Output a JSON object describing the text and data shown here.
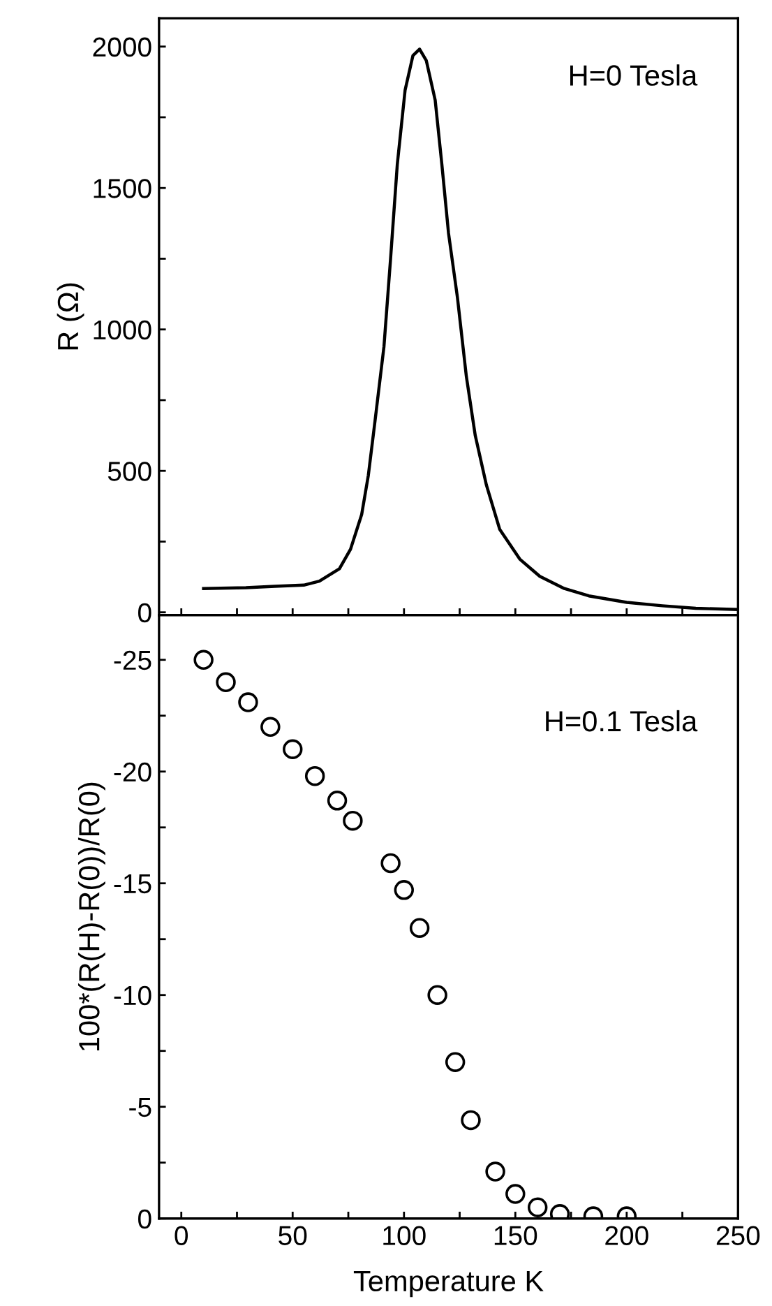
{
  "chart_data": [
    {
      "type": "line",
      "ylabel": "R (Ω)",
      "annotations": [
        "H=0 Tesla"
      ],
      "tick_labels": "y",
      "grid": false,
      "marker": "none",
      "line_style": "solid",
      "xlim": [
        -10,
        250
      ],
      "xticks": [
        {
          "value": 0,
          "label": null
        },
        {
          "value": 25,
          "label": null
        },
        {
          "value": 50,
          "label": null
        },
        {
          "value": 75,
          "label": null
        },
        {
          "value": 100,
          "label": null
        },
        {
          "value": 125,
          "label": null
        },
        {
          "value": 150,
          "label": null
        },
        {
          "value": 175,
          "label": null
        },
        {
          "value": 200,
          "label": null
        },
        {
          "value": 225,
          "label": null
        },
        {
          "value": 250,
          "label": null
        }
      ],
      "ylim": [
        -10,
        2100
      ],
      "yticks": [
        0,
        {
          "value": 250,
          "label": null
        },
        500,
        {
          "value": 750,
          "label": null
        },
        1000,
        {
          "value": 1250,
          "label": null
        },
        1500,
        {
          "value": 1750,
          "label": null
        },
        2000
      ],
      "series": [
        {
          "color": "#000000",
          "x": [
            10,
            29,
            42,
            55,
            62,
            71,
            76,
            81,
            84,
            87,
            91,
            94,
            97,
            100.5,
            104,
            107,
            110,
            114,
            117,
            120,
            124,
            128,
            132,
            137,
            143,
            152,
            161,
            172,
            183,
            200,
            216,
            231,
            250
          ],
          "values": [
            84,
            87,
            92,
            96,
            110,
            154,
            223,
            346,
            485,
            677,
            939,
            1253,
            1584,
            1846,
            1968,
            1991,
            1951,
            1811,
            1584,
            1340,
            1113,
            834,
            625,
            450,
            293,
            188,
            127,
            84,
            58,
            35,
            23,
            14,
            10
          ]
        }
      ]
    },
    {
      "type": "scatter",
      "xlabel": "Temperature K",
      "ylabel": "100*(R(H)-R(0))/R(0)",
      "annotations": [
        "H=0.1 Tesla"
      ],
      "grid": false,
      "marker": "circle",
      "xlim": [
        -10,
        250
      ],
      "xticks": [
        0,
        {
          "value": 25,
          "label": null
        },
        50,
        {
          "value": 75,
          "label": null
        },
        100,
        {
          "value": 125,
          "label": null
        },
        150,
        {
          "value": 175,
          "label": null
        },
        200,
        {
          "value": 225,
          "label": null
        },
        250
      ],
      "ylim": [
        0,
        -27
      ],
      "yticks": [
        0,
        {
          "value": -2.5,
          "label": null
        },
        -5,
        {
          "value": -7.5,
          "label": null
        },
        -10,
        {
          "value": -12.5,
          "label": null
        },
        -15,
        {
          "value": -17.5,
          "label": null
        },
        -20,
        {
          "value": -22.5,
          "label": null
        },
        -25
      ],
      "series": [
        {
          "color": "#000000",
          "x": [
            10,
            20,
            30,
            40,
            50,
            60,
            70,
            77,
            94,
            100,
            107,
            115,
            123,
            130,
            141,
            150,
            160,
            170,
            185,
            200
          ],
          "values": [
            -25.0,
            -24.0,
            -23.1,
            -22.0,
            -21.0,
            -19.8,
            -18.7,
            -17.8,
            -15.9,
            -14.7,
            -13.0,
            -10.0,
            -7.0,
            -4.4,
            -2.1,
            -1.1,
            -0.5,
            -0.2,
            -0.1,
            -0.1
          ]
        }
      ]
    }
  ]
}
